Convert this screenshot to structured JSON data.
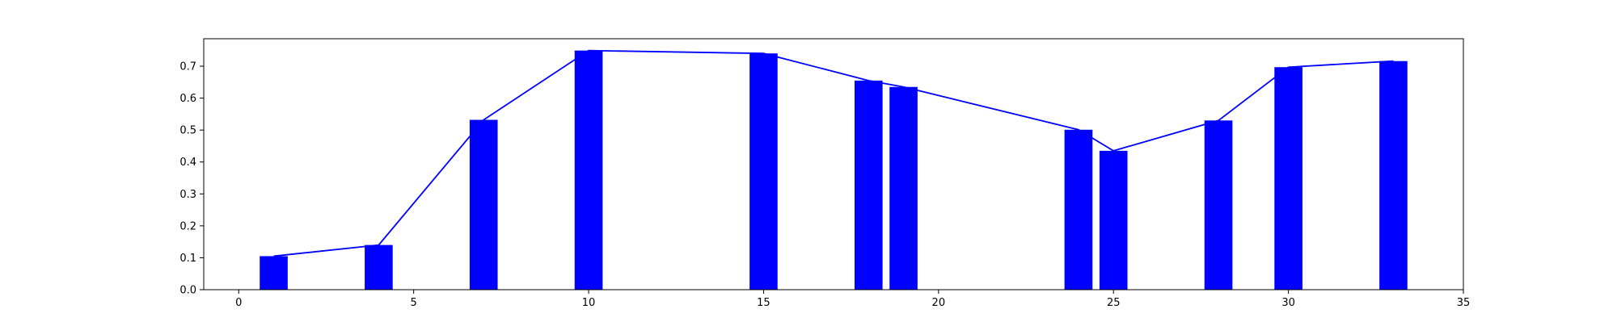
{
  "chart_data": {
    "type": "bar",
    "title": "",
    "xlabel": "",
    "ylabel": "",
    "xlim": [
      -1,
      35
    ],
    "ylim": [
      0,
      0.786
    ],
    "x_ticks": [
      0,
      5,
      10,
      15,
      20,
      25,
      30,
      35
    ],
    "y_ticks": [
      0.0,
      0.1,
      0.2,
      0.3,
      0.4,
      0.5,
      0.6,
      0.7
    ],
    "x_tick_labels": [
      "0",
      "5",
      "10",
      "15",
      "20",
      "25",
      "30",
      "35"
    ],
    "y_tick_labels": [
      "0.0",
      "0.1",
      "0.2",
      "0.3",
      "0.4",
      "0.5",
      "0.6",
      "0.7"
    ],
    "grid": false,
    "legend": "none",
    "bar_width": 0.8,
    "color": "#0000ff",
    "series": [
      {
        "type": "bar",
        "x": [
          1,
          4,
          7,
          10,
          15,
          18,
          19,
          24,
          25,
          28,
          30,
          33
        ],
        "values": [
          0.105,
          0.14,
          0.532,
          0.749,
          0.74,
          0.655,
          0.635,
          0.501,
          0.435,
          0.53,
          0.697,
          0.716
        ]
      },
      {
        "type": "line",
        "x": [
          1,
          4,
          7,
          10,
          15,
          18,
          19,
          24,
          25,
          28,
          30,
          33
        ],
        "values": [
          0.105,
          0.14,
          0.532,
          0.749,
          0.74,
          0.655,
          0.635,
          0.501,
          0.435,
          0.53,
          0.697,
          0.716
        ]
      }
    ]
  }
}
